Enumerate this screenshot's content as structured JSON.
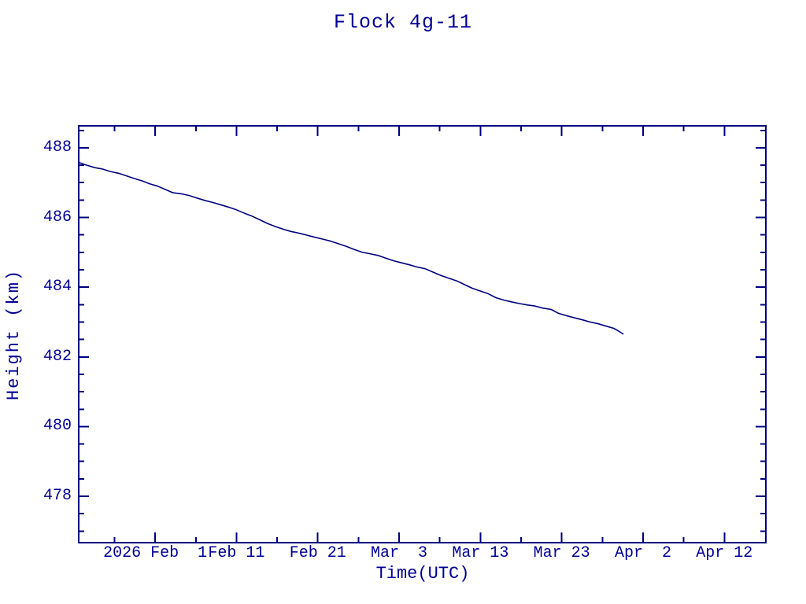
{
  "page": {
    "background": "#ffffff"
  },
  "colors": {
    "text": "#000099",
    "line": "#000080",
    "axis": "#000080"
  },
  "chart_data": {
    "type": "line",
    "title": "Flock 4g-11",
    "xlabel": "Time(UTC)",
    "ylabel": "Height (km)",
    "legend": "none",
    "grid": "off",
    "x_axis": {
      "unit_note": "days relative to 2026 Feb 1, ticks every 10 days, minor every 5 days",
      "range": [
        -9.4,
        75.1
      ],
      "major_ticks": [
        {
          "value": 0,
          "label": "2026 Feb  1"
        },
        {
          "value": 10,
          "label": "Feb 11"
        },
        {
          "value": 20,
          "label": "Feb 21"
        },
        {
          "value": 30,
          "label": "Mar  3"
        },
        {
          "value": 40,
          "label": "Mar 13"
        },
        {
          "value": 50,
          "label": "Mar 23"
        },
        {
          "value": 60,
          "label": "Apr  2"
        },
        {
          "value": 70,
          "label": "Apr 12"
        }
      ],
      "minor_ticks": [
        -5,
        5,
        15,
        25,
        35,
        45,
        55,
        65
      ]
    },
    "y_axis": {
      "range": [
        476.67,
        488.63
      ],
      "major_ticks": [
        {
          "value": 488,
          "label": "488"
        },
        {
          "value": 486,
          "label": "486"
        },
        {
          "value": 484,
          "label": "484"
        },
        {
          "value": 482,
          "label": "482"
        },
        {
          "value": 480,
          "label": "480"
        },
        {
          "value": 478,
          "label": "478"
        }
      ],
      "minor_ticks": [
        488.5,
        487.5,
        487,
        486.5,
        485.5,
        485,
        484.5,
        483.5,
        483,
        482.5,
        481.5,
        481,
        480.5,
        479.5,
        479,
        478.5,
        477.5,
        477
      ]
    },
    "series": [
      {
        "name": "Flock 4g-11 height",
        "color": "#000080",
        "points": [
          [
            -9.4,
            487.58
          ],
          [
            -8.4,
            487.5
          ],
          [
            -7.4,
            487.43
          ],
          [
            -6.5,
            487.39
          ],
          [
            -5.5,
            487.32
          ],
          [
            -4.5,
            487.27
          ],
          [
            -3.6,
            487.2
          ],
          [
            -2.6,
            487.12
          ],
          [
            -1.6,
            487.05
          ],
          [
            -0.7,
            486.97
          ],
          [
            0.3,
            486.9
          ],
          [
            1.3,
            486.8
          ],
          [
            2.2,
            486.71
          ],
          [
            3.2,
            486.68
          ],
          [
            4.2,
            486.63
          ],
          [
            5.1,
            486.56
          ],
          [
            6.1,
            486.49
          ],
          [
            7.1,
            486.43
          ],
          [
            8.0,
            486.37
          ],
          [
            9.0,
            486.3
          ],
          [
            10.0,
            486.22
          ],
          [
            11.0,
            486.12
          ],
          [
            11.9,
            486.04
          ],
          [
            12.9,
            485.93
          ],
          [
            13.8,
            485.83
          ],
          [
            14.8,
            485.74
          ],
          [
            15.8,
            485.66
          ],
          [
            16.7,
            485.6
          ],
          [
            17.7,
            485.55
          ],
          [
            18.7,
            485.49
          ],
          [
            19.7,
            485.43
          ],
          [
            20.6,
            485.38
          ],
          [
            21.6,
            485.32
          ],
          [
            22.5,
            485.25
          ],
          [
            23.5,
            485.17
          ],
          [
            24.5,
            485.08
          ],
          [
            25.5,
            485.0
          ],
          [
            26.4,
            484.96
          ],
          [
            27.4,
            484.91
          ],
          [
            28.4,
            484.83
          ],
          [
            29.3,
            484.76
          ],
          [
            30.3,
            484.7
          ],
          [
            31.3,
            484.64
          ],
          [
            32.2,
            484.58
          ],
          [
            33.2,
            484.53
          ],
          [
            34.2,
            484.43
          ],
          [
            35.1,
            484.34
          ],
          [
            36.1,
            484.26
          ],
          [
            37.1,
            484.18
          ],
          [
            38.0,
            484.08
          ],
          [
            39.0,
            483.97
          ],
          [
            40.0,
            483.89
          ],
          [
            40.9,
            483.82
          ],
          [
            41.9,
            483.7
          ],
          [
            42.9,
            483.63
          ],
          [
            43.8,
            483.58
          ],
          [
            44.8,
            483.53
          ],
          [
            45.8,
            483.49
          ],
          [
            46.7,
            483.46
          ],
          [
            47.7,
            483.4
          ],
          [
            48.7,
            483.36
          ],
          [
            49.6,
            483.25
          ],
          [
            50.6,
            483.18
          ],
          [
            51.6,
            483.12
          ],
          [
            52.6,
            483.06
          ],
          [
            53.5,
            483.0
          ],
          [
            54.5,
            482.95
          ],
          [
            55.5,
            482.88
          ],
          [
            56.4,
            482.82
          ],
          [
            57.0,
            482.74
          ],
          [
            57.6,
            482.65
          ]
        ]
      }
    ]
  }
}
